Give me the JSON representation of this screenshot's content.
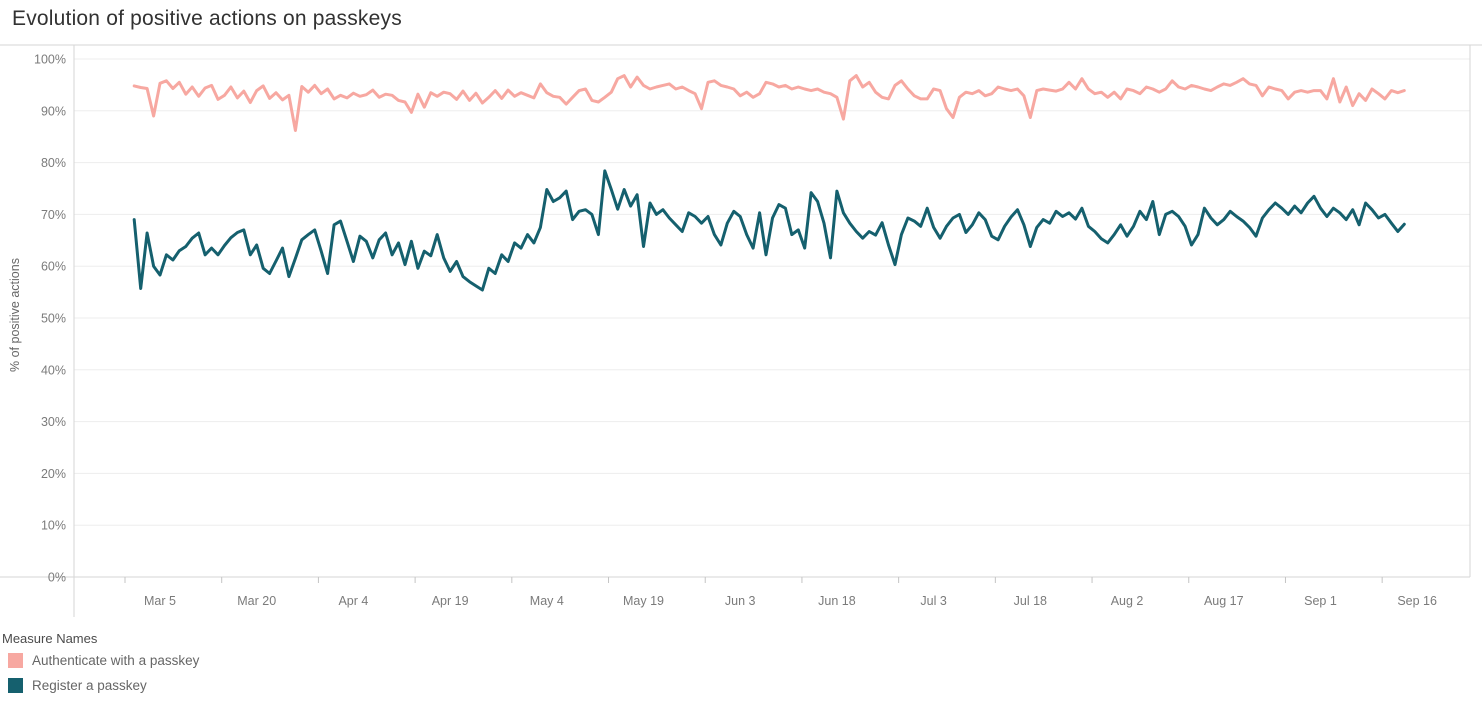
{
  "title": "Evolution of positive actions on passkeys",
  "y_axis": {
    "label": "% of positive actions",
    "tick_values": [
      0,
      10,
      20,
      30,
      40,
      50,
      60,
      70,
      80,
      90,
      100
    ],
    "tick_labels": [
      "0%",
      "10%",
      "20%",
      "30%",
      "40%",
      "50%",
      "60%",
      "70%",
      "80%",
      "90%",
      "100%"
    ]
  },
  "x_axis": {
    "ticks": [
      {
        "label": "Mar 5",
        "day": 4
      },
      {
        "label": "Mar 20",
        "day": 19
      },
      {
        "label": "Apr 4",
        "day": 34
      },
      {
        "label": "Apr 19",
        "day": 49
      },
      {
        "label": "May 4",
        "day": 64
      },
      {
        "label": "May 19",
        "day": 79
      },
      {
        "label": "Jun 3",
        "day": 94
      },
      {
        "label": "Jun 18",
        "day": 109
      },
      {
        "label": "Jul 3",
        "day": 124
      },
      {
        "label": "Jul 18",
        "day": 139
      },
      {
        "label": "Aug 2",
        "day": 154
      },
      {
        "label": "Aug 17",
        "day": 169
      },
      {
        "label": "Sep 1",
        "day": 184
      },
      {
        "label": "Sep 16",
        "day": 199
      }
    ]
  },
  "legend": {
    "title": "Measure Names",
    "items": [
      {
        "label": "Authenticate with a passkey",
        "color": "#f7a8a1"
      },
      {
        "label": "Register a passkey",
        "color": "#15606e"
      }
    ]
  },
  "colors": {
    "grid": "#ededed",
    "border": "#d6d6d6",
    "tick": "#c4c4c4",
    "axis_text": "#7b7b7b"
  },
  "chart_data": {
    "type": "line",
    "title": "Evolution of positive actions on passkeys",
    "xlabel": "",
    "ylabel": "% of positive actions",
    "ylim": [
      0,
      100
    ],
    "grid": true,
    "legend_position": "bottom-left",
    "x_unit": "daily points, day index 0 = Mar 1, day 197 = Sep 14",
    "series": [
      {
        "name": "Authenticate with a passkey",
        "color": "#f7a8a1",
        "values": [
          94.8,
          94.5,
          94.3,
          89.0,
          95.3,
          95.8,
          94.3,
          95.5,
          93.2,
          94.6,
          92.8,
          94.4,
          94.9,
          92.2,
          93.0,
          94.6,
          92.5,
          93.8,
          91.6,
          93.9,
          94.8,
          92.4,
          93.5,
          92.1,
          93.0,
          86.2,
          94.7,
          93.6,
          94.9,
          93.3,
          94.2,
          92.3,
          93.0,
          92.5,
          93.4,
          92.8,
          93.1,
          94.0,
          92.6,
          93.2,
          93.0,
          92.0,
          91.7,
          89.7,
          93.2,
          90.7,
          93.5,
          92.8,
          93.6,
          93.3,
          92.2,
          93.8,
          92.0,
          93.4,
          91.5,
          92.6,
          93.9,
          92.4,
          94.0,
          92.8,
          93.5,
          93.0,
          92.5,
          95.2,
          93.5,
          92.8,
          92.6,
          91.3,
          92.6,
          93.9,
          94.2,
          92.0,
          91.7,
          92.6,
          93.6,
          96.2,
          96.8,
          94.6,
          96.5,
          94.9,
          94.2,
          94.6,
          94.9,
          95.2,
          94.2,
          94.6,
          93.9,
          93.3,
          90.4,
          95.5,
          95.8,
          94.9,
          94.6,
          94.2,
          92.9,
          93.6,
          92.6,
          93.3,
          95.5,
          95.2,
          94.6,
          94.9,
          94.2,
          94.6,
          94.2,
          93.9,
          94.2,
          93.6,
          93.3,
          92.6,
          88.4,
          95.8,
          96.8,
          94.6,
          95.5,
          93.6,
          92.6,
          92.3,
          94.9,
          95.8,
          94.2,
          92.9,
          92.3,
          92.3,
          94.2,
          93.9,
          90.4,
          88.7,
          92.6,
          93.6,
          93.3,
          93.9,
          92.9,
          93.3,
          94.6,
          94.2,
          93.9,
          94.2,
          92.9,
          88.7,
          93.9,
          94.2,
          94.0,
          93.8,
          94.2,
          95.5,
          94.2,
          96.2,
          94.2,
          93.3,
          93.6,
          92.6,
          93.6,
          92.3,
          94.2,
          93.9,
          93.3,
          94.6,
          94.2,
          93.6,
          94.2,
          95.8,
          94.6,
          94.2,
          94.9,
          94.6,
          94.2,
          93.9,
          94.6,
          95.2,
          94.9,
          95.5,
          96.2,
          95.2,
          94.9,
          92.9,
          94.6,
          94.2,
          93.9,
          92.3,
          93.6,
          93.9,
          93.6,
          93.9,
          93.9,
          92.3,
          96.2,
          91.7,
          94.6,
          91.0,
          93.3,
          92.0,
          94.2,
          93.3,
          92.3,
          93.9,
          93.5,
          93.9
        ]
      },
      {
        "name": "Register a passkey",
        "color": "#15606e",
        "values": [
          69.0,
          55.7,
          66.4,
          60.0,
          58.3,
          62.2,
          61.2,
          63.0,
          63.8,
          65.4,
          66.4,
          62.2,
          63.5,
          62.2,
          64.0,
          65.5,
          66.5,
          67.0,
          62.2,
          64.1,
          59.6,
          58.6,
          61.0,
          63.5,
          58.0,
          61.5,
          65.1,
          66.1,
          67.0,
          62.9,
          58.6,
          68.0,
          68.7,
          64.8,
          60.9,
          65.8,
          64.8,
          61.6,
          65.1,
          66.4,
          62.2,
          64.5,
          60.3,
          64.8,
          59.6,
          62.9,
          62.0,
          66.1,
          61.6,
          59.0,
          60.9,
          58.0,
          57.0,
          56.2,
          55.4,
          59.6,
          58.6,
          62.2,
          60.9,
          64.5,
          63.5,
          66.1,
          64.5,
          67.5,
          74.8,
          72.5,
          73.2,
          74.5,
          69.0,
          70.6,
          70.9,
          70.0,
          66.1,
          78.4,
          74.8,
          71.0,
          74.8,
          71.6,
          73.8,
          63.8,
          72.2,
          70.0,
          70.9,
          69.3,
          68.0,
          66.7,
          70.3,
          69.6,
          68.3,
          69.6,
          66.1,
          64.1,
          68.3,
          70.6,
          69.6,
          66.1,
          63.5,
          70.3,
          62.2,
          69.3,
          71.9,
          71.2,
          66.1,
          67.0,
          63.5,
          74.2,
          72.5,
          68.3,
          61.6,
          74.5,
          70.3,
          68.3,
          66.7,
          65.4,
          66.7,
          66.0,
          68.4,
          64.1,
          60.3,
          66.1,
          69.3,
          68.7,
          67.7,
          71.2,
          67.5,
          65.4,
          67.7,
          69.3,
          70.0,
          66.5,
          68.0,
          70.3,
          69.0,
          65.8,
          65.1,
          67.7,
          69.5,
          70.9,
          68.0,
          63.8,
          67.5,
          69.0,
          68.3,
          70.6,
          69.6,
          70.3,
          69.1,
          71.2,
          67.7,
          66.7,
          65.3,
          64.5,
          66.1,
          68.0,
          65.8,
          67.7,
          70.6,
          69.0,
          72.5,
          66.1,
          70.0,
          70.6,
          69.6,
          67.7,
          64.1,
          66.1,
          71.2,
          69.3,
          68.0,
          69.0,
          70.6,
          69.6,
          68.7,
          67.5,
          65.8,
          69.3,
          70.9,
          72.2,
          71.2,
          70.0,
          71.6,
          70.3,
          72.2,
          73.5,
          71.2,
          69.6,
          71.2,
          70.3,
          69.0,
          70.9,
          68.0,
          72.2,
          70.9,
          69.3,
          70.0,
          68.3,
          66.7,
          68.1
        ]
      }
    ]
  }
}
